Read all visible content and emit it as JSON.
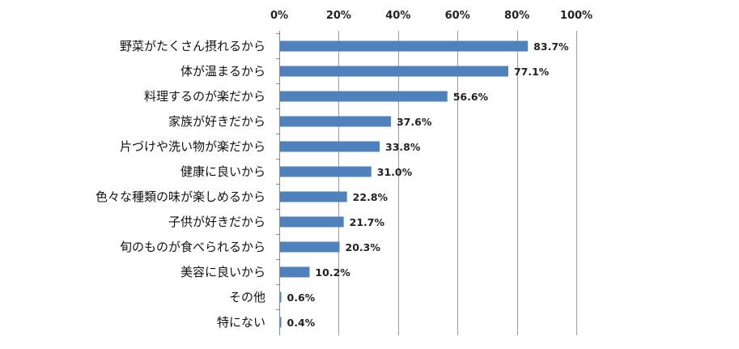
{
  "chart_data": {
    "type": "bar",
    "orientation": "horizontal",
    "title": "",
    "xlabel": "",
    "ylabel": "",
    "xlim": [
      0,
      100
    ],
    "x_ticks": [
      "0%",
      "20%",
      "40%",
      "60%",
      "80%",
      "100%"
    ],
    "x_tick_values": [
      0,
      20,
      40,
      60,
      80,
      100
    ],
    "x_axis_position": "top",
    "grid": true,
    "legend": "none",
    "bar_color": "#4f81bd",
    "categories": [
      "野菜がたくさん摂れるから",
      "体が温まるから",
      "料理するのが楽だから",
      "家族が好きだから",
      "片づけや洗い物が楽だから",
      "健康に良いから",
      "色々な種類の味が楽しめるから",
      "子供が好きだから",
      "旬のものが食べられるから",
      "美容に良いから",
      "その他",
      "特にない"
    ],
    "values": [
      83.7,
      77.1,
      56.6,
      37.6,
      33.8,
      31.0,
      22.8,
      21.7,
      20.3,
      10.2,
      0.6,
      0.4
    ],
    "data_labels": [
      "83.7%",
      "77.1%",
      "56.6%",
      "37.6%",
      "33.8%",
      "31.0%",
      "22.8%",
      "21.7%",
      "20.3%",
      "10.2%",
      "0.6%",
      "0.4%"
    ]
  }
}
